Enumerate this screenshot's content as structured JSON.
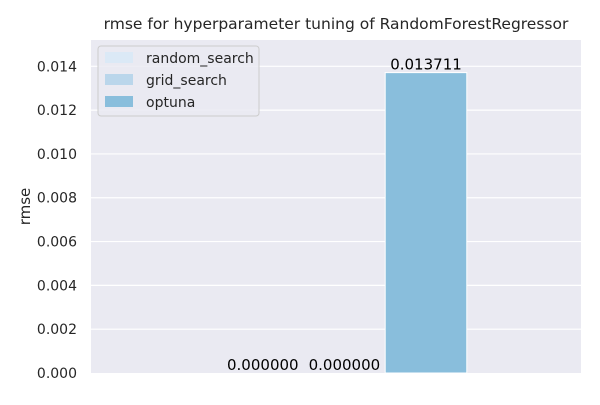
{
  "chart_data": {
    "type": "bar",
    "title": "rmse for hyperparameter tuning of RandomForestRegressor",
    "xlabel": "",
    "ylabel": "rmse",
    "ylim": [
      0,
      0.0152
    ],
    "yticks": [
      "0.000",
      "0.002",
      "0.004",
      "0.006",
      "0.008",
      "0.010",
      "0.012",
      "0.014"
    ],
    "grid": true,
    "legend_position": "top-left",
    "series": [
      {
        "name": "random_search",
        "value": 0.0,
        "label": "0.000000",
        "color": "#dbe9f6"
      },
      {
        "name": "grid_search",
        "value": 0.0,
        "label": "0.000000",
        "color": "#bad6eb"
      },
      {
        "name": "optuna",
        "value": 0.013711,
        "label": "0.013711",
        "color": "#89bedc"
      }
    ]
  },
  "colors": {
    "plot_background": "#eaeaf2",
    "grid": "#ffffff",
    "text": "#262626"
  }
}
